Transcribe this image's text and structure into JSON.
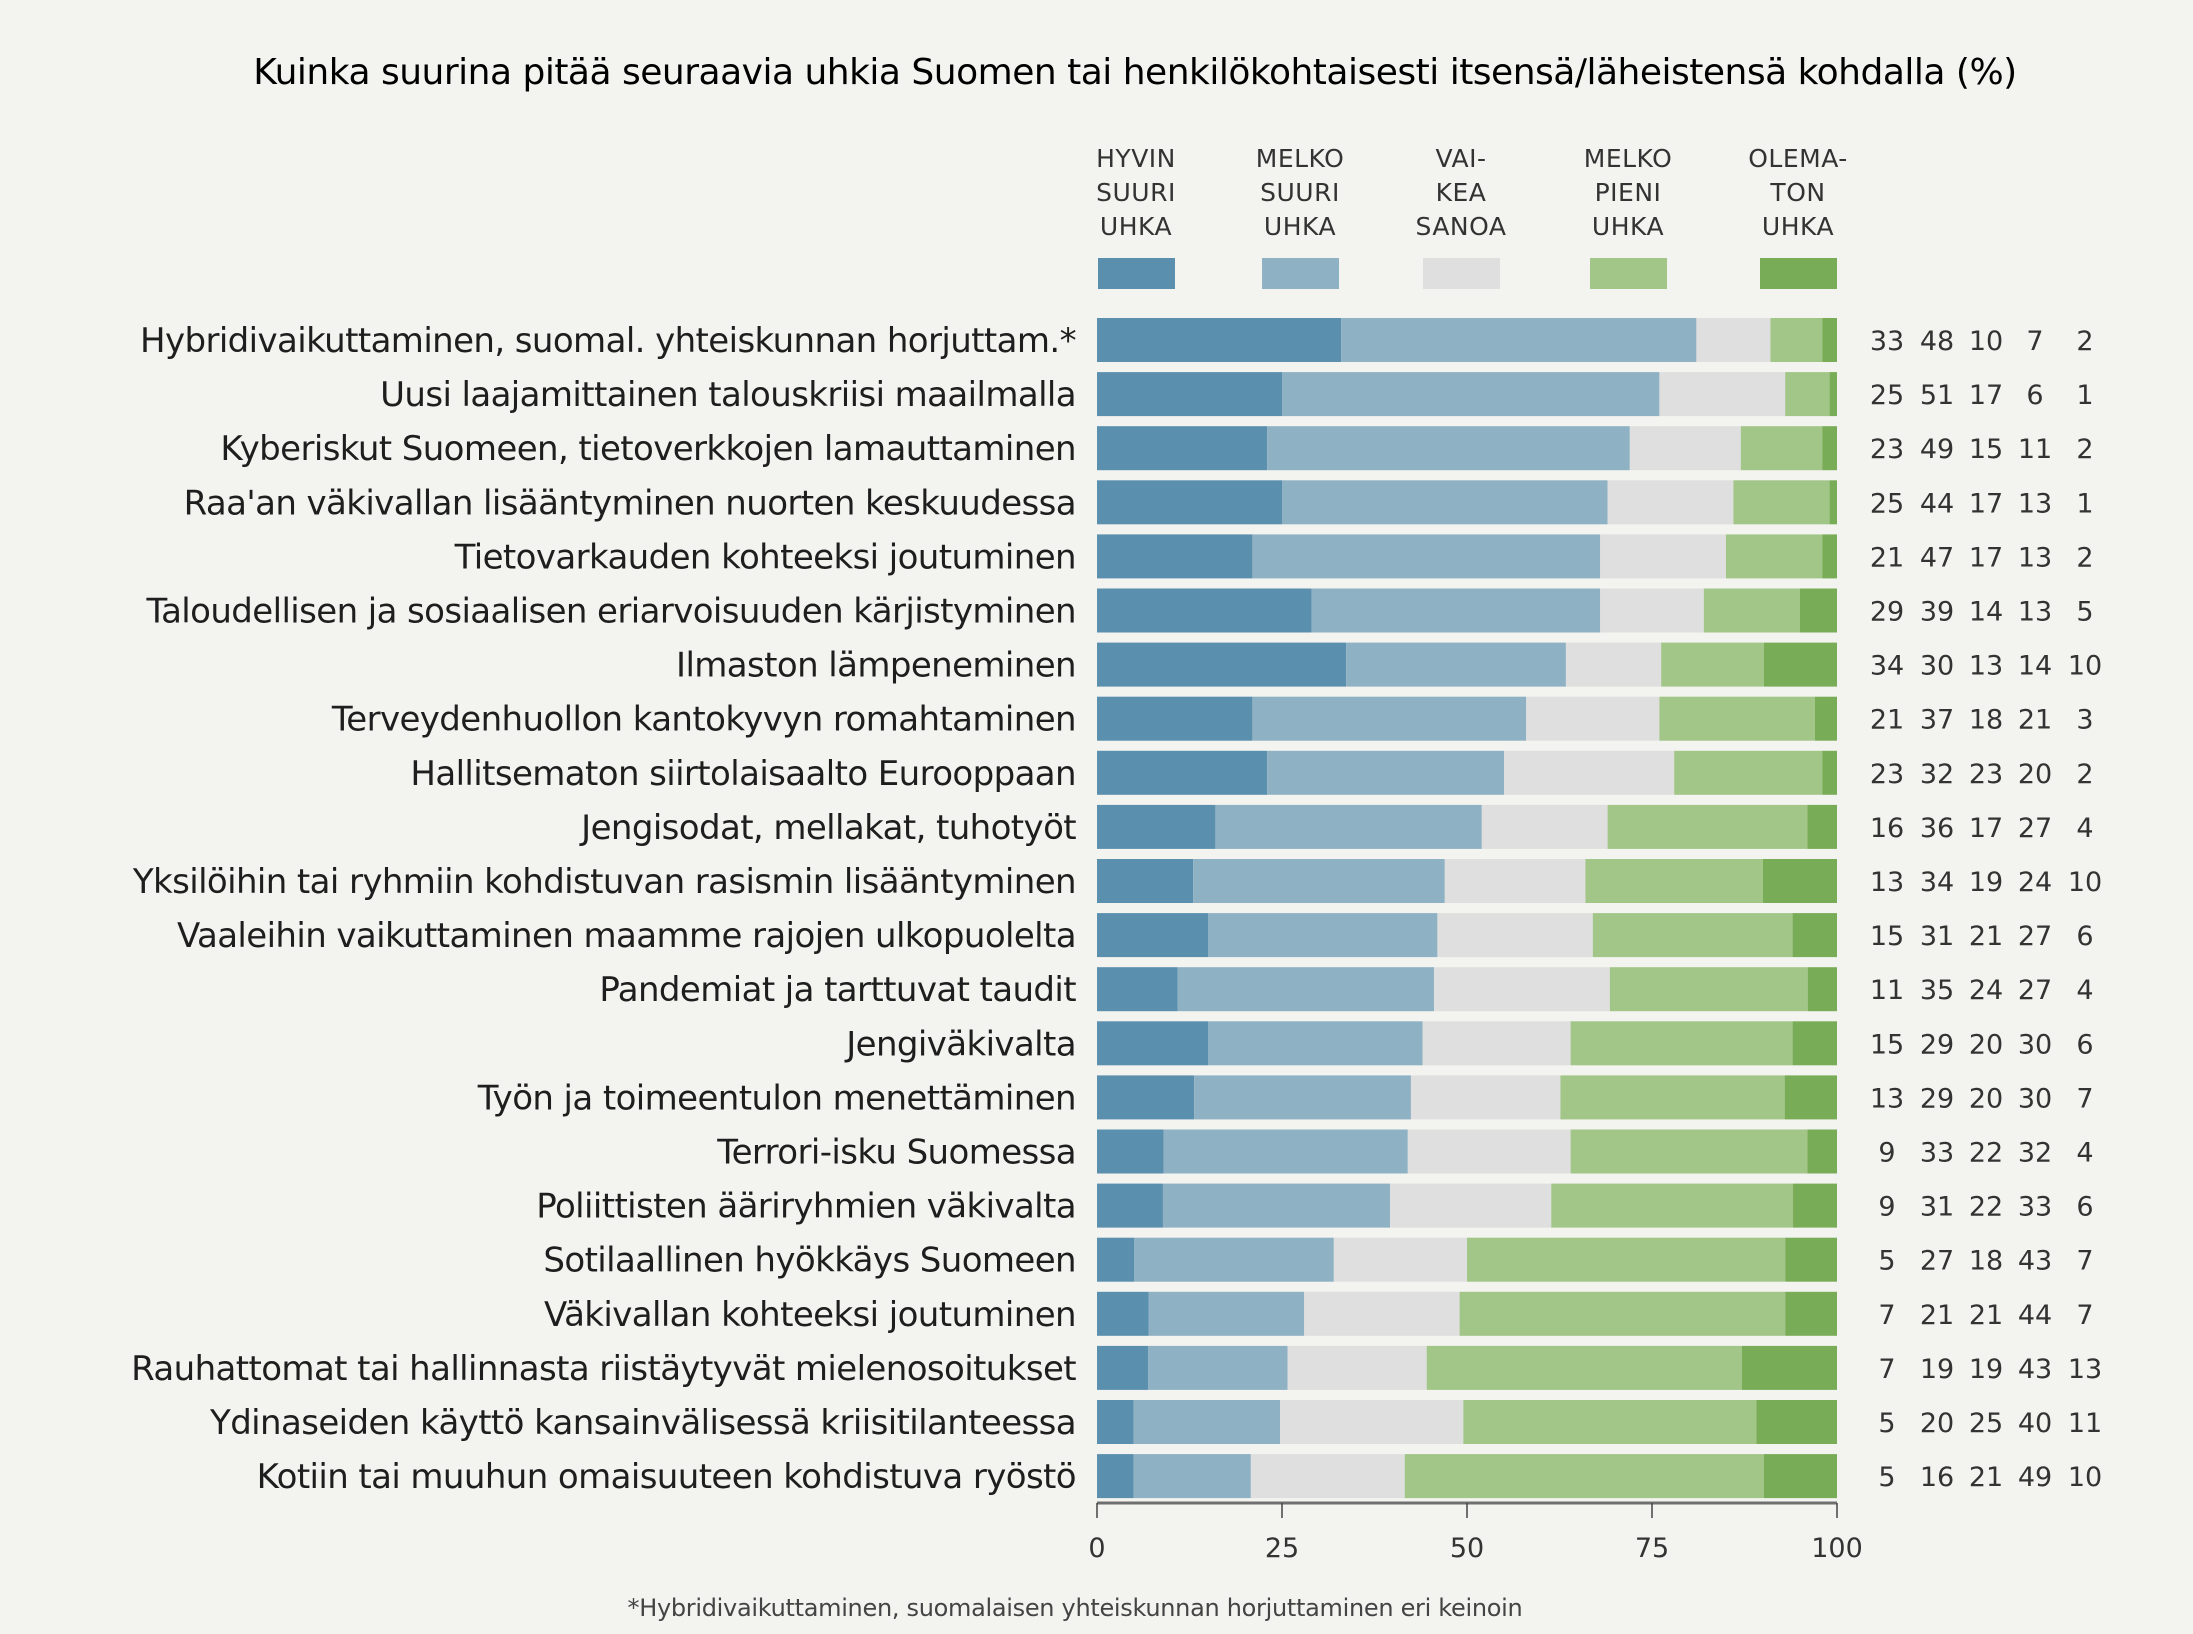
{
  "chart_data": {
    "type": "bar",
    "orientation": "horizontal",
    "stacked": true,
    "title": "Kuinka suurina pitää seuraavia uhkia Suomen tai henkilökohtaisesti itsensä/läheistensä kohdalla (%)",
    "xlabel": "",
    "ylabel": "",
    "xlim": [
      0,
      100
    ],
    "xticks": [
      "0",
      "25",
      "50",
      "75",
      "100"
    ],
    "grid": false,
    "legend_position": "top",
    "footnote": "*Hybridivaikuttaminen, suomalaisen yhteiskunnan horjuttaminen eri keinoin",
    "series": [
      {
        "name": "HYVIN SUURI UHKA",
        "label_lines": [
          "HYVIN",
          "SUURI",
          "UHKA"
        ],
        "color": "#5a8fae",
        "values": [
          33,
          25,
          23,
          25,
          21,
          29,
          34,
          21,
          23,
          16,
          13,
          15,
          11,
          15,
          13,
          9,
          9,
          5,
          7,
          7,
          5,
          5
        ]
      },
      {
        "name": "MELKO SUURI UHKA",
        "label_lines": [
          "MELKO",
          "SUURI",
          "UHKA"
        ],
        "color": "#8eb1c4",
        "values": [
          48,
          51,
          49,
          44,
          47,
          39,
          30,
          37,
          32,
          36,
          34,
          31,
          35,
          29,
          29,
          33,
          31,
          27,
          21,
          19,
          20,
          16
        ]
      },
      {
        "name": "VAIKEA SANOA",
        "label_lines": [
          "VAI-",
          "KEA",
          "SANOA"
        ],
        "color": "#dfdfdf",
        "values": [
          10,
          17,
          15,
          17,
          17,
          14,
          13,
          18,
          23,
          17,
          19,
          21,
          24,
          20,
          20,
          22,
          22,
          18,
          21,
          19,
          25,
          21
        ]
      },
      {
        "name": "MELKO PIENI UHKA",
        "label_lines": [
          "MELKO",
          "PIENI",
          "UHKA"
        ],
        "color": "#a2c588",
        "values": [
          7,
          6,
          11,
          13,
          13,
          13,
          14,
          21,
          20,
          27,
          24,
          27,
          27,
          30,
          30,
          32,
          33,
          43,
          44,
          43,
          40,
          49
        ]
      },
      {
        "name": "OLEMATON UHKA",
        "label_lines": [
          "OLEMA-",
          "TON",
          "UHKA"
        ],
        "color": "#79ac57",
        "values": [
          2,
          1,
          2,
          1,
          2,
          5,
          10,
          3,
          2,
          4,
          10,
          6,
          4,
          6,
          7,
          4,
          6,
          7,
          7,
          13,
          11,
          10
        ]
      }
    ],
    "categories": [
      "Hybridivaikuttaminen, suomal. yhteiskunnan horjuttam.*",
      "Uusi laajamittainen talouskriisi maailmalla",
      "Kyberiskut Suomeen, tietoverkkojen lamauttaminen",
      "Raa'an väkivallan lisääntyminen nuorten keskuudessa",
      "Tietovarkauden kohteeksi joutuminen",
      "Taloudellisen ja sosiaalisen eriarvoisuuden kärjistyminen",
      "Ilmaston lämpeneminen",
      "Terveydenhuollon kantokyvyn romahtaminen",
      "Hallitsematon siirtolaisaalto Eurooppaan",
      "Jengisodat, mellakat, tuhotyöt",
      "Yksilöihin tai ryhmiin kohdistuvan rasismin lisääntyminen",
      "Vaaleihin vaikuttaminen maamme rajojen ulkopuolelta",
      "Pandemiat ja tarttuvat taudit",
      "Jengiväkivalta",
      "Työn ja toimeentulon menettäminen",
      "Terrori-isku Suomessa",
      "Poliittisten ääriryhmien väkivalta",
      "Sotilaallinen hyökkäys Suomeen",
      "Väkivallan kohteeksi joutuminen",
      "Rauhattomat tai hallinnasta riistäytyvät mielenosoitukset",
      "Ydinaseiden käyttö kansainvälisessä kriisitilanteessa",
      "Kotiin tai muuhun omaisuuteen kohdistuva ryöstö"
    ]
  }
}
